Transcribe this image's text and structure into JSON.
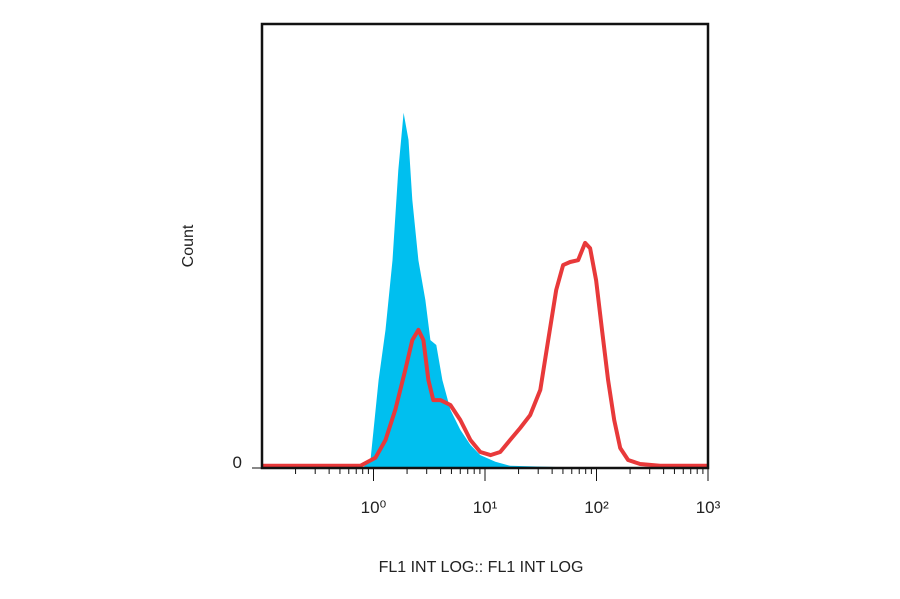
{
  "chart_data": {
    "type": "histogram-overlay",
    "xlabel": "FL1 INT LOG:: FL1 INT LOG",
    "ylabel": "Count",
    "log_x": true,
    "xlim": [
      0.1,
      1000
    ],
    "ylim": [
      0,
      100
    ],
    "xticks": [
      {
        "value": 1,
        "label": "10⁰"
      },
      {
        "value": 10,
        "label": "10¹"
      },
      {
        "value": 100,
        "label": "10²"
      },
      {
        "value": 1000,
        "label": "10³"
      }
    ],
    "xminorticks": [
      0.2,
      0.3,
      0.4,
      0.5,
      0.6,
      0.7,
      0.8,
      0.9,
      2,
      3,
      4,
      5,
      6,
      7,
      8,
      9,
      20,
      30,
      40,
      50,
      60,
      70,
      80,
      90,
      200,
      300,
      400,
      500,
      600,
      700,
      800,
      900
    ],
    "yticks": [
      0
    ],
    "series": [
      {
        "style": "filled",
        "color": "#00bfef",
        "x": [
          0.797,
          0.94,
          1.11,
          1.28,
          1.48,
          1.67,
          1.86,
          2.06,
          2.23,
          2.53,
          2.92,
          3.24,
          3.66,
          4.15,
          4.89,
          6.01,
          7.39,
          9.08,
          12.4,
          16.8,
          47.2,
          1000
        ],
        "values": [
          0,
          1.8,
          19.8,
          31.1,
          46.8,
          67.1,
          80.0,
          73.9,
          60.4,
          46.8,
          37.8,
          28.8,
          27.7,
          19.8,
          13.1,
          8.6,
          5.2,
          2.9,
          1.4,
          0.5,
          0.2,
          0
        ]
      },
      {
        "style": "line",
        "color": "#e8393a",
        "x": [
          0.1,
          0.765,
          1.04,
          1.28,
          1.57,
          1.93,
          2.23,
          2.53,
          2.8,
          3.11,
          3.44,
          3.98,
          4.89,
          6.01,
          7.39,
          9.08,
          11.2,
          13.7,
          16.8,
          20.7,
          25.4,
          31.3,
          36.9,
          43.5,
          50.2,
          58.0,
          68.4,
          79.1,
          87.7,
          99.2,
          112,
          127,
          144,
          163,
          192,
          246,
          371,
          1000
        ],
        "values": [
          0.5,
          0.5,
          2.3,
          6.3,
          13.1,
          22.1,
          28.8,
          31.1,
          28.8,
          19.8,
          15.3,
          15.3,
          14.2,
          10.8,
          6.3,
          3.6,
          2.9,
          3.6,
          6.3,
          9.0,
          11.9,
          17.6,
          28.8,
          40.1,
          45.7,
          46.4,
          46.8,
          50.7,
          49.5,
          42.3,
          31.1,
          19.8,
          10.8,
          4.5,
          1.8,
          0.9,
          0.5,
          0.5
        ]
      }
    ]
  }
}
